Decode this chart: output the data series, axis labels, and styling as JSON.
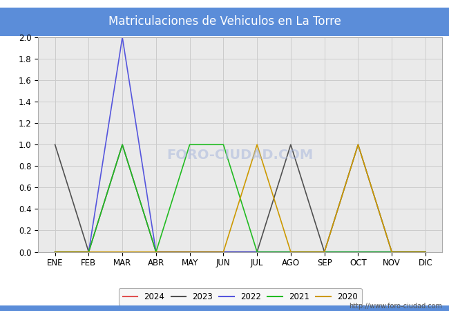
{
  "title": "Matriculaciones de Vehiculos en La Torre",
  "title_bg_color": "#5b8dd9",
  "title_text_color": "#ffffff",
  "months": [
    "ENE",
    "FEB",
    "MAR",
    "ABR",
    "MAY",
    "JUN",
    "JUL",
    "AGO",
    "SEP",
    "OCT",
    "NOV",
    "DIC"
  ],
  "series": {
    "2024": {
      "color": "#e05050",
      "data": [
        null,
        null,
        null,
        null,
        null,
        null,
        null,
        null,
        null,
        null,
        null,
        null
      ]
    },
    "2023": {
      "color": "#505050",
      "data": [
        1,
        0,
        1,
        0,
        0,
        0,
        0,
        1,
        0,
        1,
        0,
        0
      ]
    },
    "2022": {
      "color": "#5555dd",
      "data": [
        0,
        0,
        2,
        0,
        0,
        0,
        0,
        0,
        0,
        0,
        0,
        0
      ]
    },
    "2021": {
      "color": "#22bb22",
      "data": [
        0,
        0,
        1,
        0,
        1,
        1,
        0,
        0,
        0,
        0,
        0,
        0
      ]
    },
    "2020": {
      "color": "#cc9900",
      "data": [
        0,
        0,
        0,
        0,
        0,
        0,
        1,
        0,
        0,
        1,
        0,
        0
      ]
    }
  },
  "ylim": [
    0.0,
    2.0
  ],
  "yticks": [
    0.0,
    0.2,
    0.4,
    0.6,
    0.8,
    1.0,
    1.2,
    1.4,
    1.6,
    1.8,
    2.0
  ],
  "grid_color": "#cccccc",
  "plot_bg_color": "#eaeaea",
  "outer_bg_color": "#ffffff",
  "watermark": "FORO-CIUDAD.COM",
  "url": "http://www.foro-ciudad.com",
  "legend_years": [
    "2024",
    "2023",
    "2022",
    "2021",
    "2020"
  ]
}
